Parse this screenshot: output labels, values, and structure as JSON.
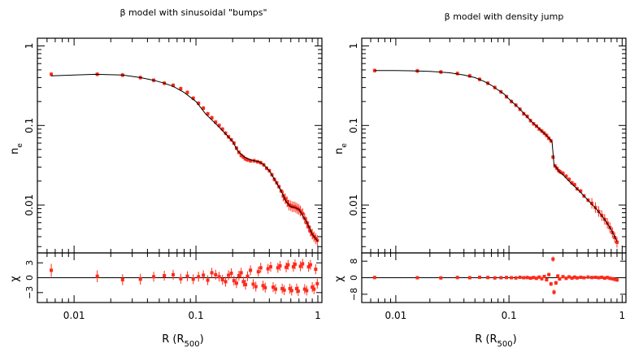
{
  "chart_data": [
    {
      "type": "line",
      "title": "β model with sinusoidal \"bumps\"",
      "xlabel": "R (R",
      "xlabel_sub": "500",
      "xlabel_close": ")",
      "ylabel": "n",
      "ylabel_sub": "e",
      "xscale": "log",
      "yscale": "log",
      "xlim": [
        0.005,
        1.08
      ],
      "ylim": [
        0.0025,
        1.25
      ],
      "xticks": [
        {
          "v": 0.01,
          "label": "0.01"
        },
        {
          "v": 0.1,
          "label": "0.1"
        },
        {
          "v": 1,
          "label": "1"
        }
      ],
      "yticks": [
        {
          "v": 0.01,
          "label": "0.01"
        },
        {
          "v": 0.1,
          "label": "0.1"
        },
        {
          "v": 1,
          "label": "1"
        }
      ],
      "model_color": "#000000",
      "data_color": "#ff2a1a",
      "model_points": [
        [
          0.0065,
          0.42
        ],
        [
          0.01,
          0.43
        ],
        [
          0.015,
          0.44
        ],
        [
          0.025,
          0.43
        ],
        [
          0.035,
          0.4
        ],
        [
          0.045,
          0.37
        ],
        [
          0.055,
          0.34
        ],
        [
          0.065,
          0.31
        ],
        [
          0.08,
          0.26
        ],
        [
          0.1,
          0.2
        ],
        [
          0.12,
          0.14
        ],
        [
          0.15,
          0.1
        ],
        [
          0.18,
          0.075
        ],
        [
          0.2,
          0.063
        ],
        [
          0.22,
          0.048
        ],
        [
          0.25,
          0.04
        ],
        [
          0.28,
          0.037
        ],
        [
          0.3,
          0.036
        ],
        [
          0.33,
          0.035
        ],
        [
          0.36,
          0.032
        ],
        [
          0.4,
          0.027
        ],
        [
          0.45,
          0.02
        ],
        [
          0.5,
          0.015
        ],
        [
          0.55,
          0.011
        ],
        [
          0.6,
          0.0095
        ],
        [
          0.65,
          0.0093
        ],
        [
          0.7,
          0.0088
        ],
        [
          0.8,
          0.0063
        ],
        [
          0.9,
          0.0043
        ],
        [
          1.0,
          0.0035
        ]
      ],
      "data_points": [
        [
          0.0065,
          0.44
        ],
        [
          0.0155,
          0.44
        ],
        [
          0.025,
          0.43
        ],
        [
          0.035,
          0.4
        ],
        [
          0.045,
          0.37
        ],
        [
          0.055,
          0.34
        ],
        [
          0.065,
          0.32
        ],
        [
          0.075,
          0.29
        ],
        [
          0.085,
          0.26
        ],
        [
          0.095,
          0.22
        ],
        [
          0.105,
          0.19
        ],
        [
          0.115,
          0.165
        ],
        [
          0.125,
          0.14
        ],
        [
          0.135,
          0.125
        ],
        [
          0.145,
          0.11
        ],
        [
          0.155,
          0.1
        ],
        [
          0.165,
          0.09
        ],
        [
          0.175,
          0.08
        ],
        [
          0.185,
          0.072
        ],
        [
          0.195,
          0.066
        ],
        [
          0.205,
          0.06
        ],
        [
          0.215,
          0.052
        ],
        [
          0.225,
          0.046
        ],
        [
          0.235,
          0.042
        ],
        [
          0.245,
          0.04
        ],
        [
          0.255,
          0.038
        ],
        [
          0.265,
          0.037
        ],
        [
          0.28,
          0.036
        ],
        [
          0.3,
          0.036
        ],
        [
          0.32,
          0.035
        ],
        [
          0.34,
          0.034
        ],
        [
          0.36,
          0.032
        ],
        [
          0.38,
          0.029
        ],
        [
          0.4,
          0.027
        ],
        [
          0.42,
          0.024
        ],
        [
          0.44,
          0.021
        ],
        [
          0.46,
          0.019
        ],
        [
          0.48,
          0.017
        ],
        [
          0.5,
          0.015
        ],
        [
          0.52,
          0.013
        ],
        [
          0.54,
          0.012
        ],
        [
          0.56,
          0.011
        ],
        [
          0.58,
          0.01
        ],
        [
          0.6,
          0.0098
        ],
        [
          0.62,
          0.0095
        ],
        [
          0.64,
          0.0095
        ],
        [
          0.66,
          0.0093
        ],
        [
          0.68,
          0.009
        ],
        [
          0.7,
          0.0088
        ],
        [
          0.72,
          0.0084
        ],
        [
          0.75,
          0.0078
        ],
        [
          0.78,
          0.0068
        ],
        [
          0.81,
          0.006
        ],
        [
          0.84,
          0.0053
        ],
        [
          0.87,
          0.0047
        ],
        [
          0.9,
          0.0043
        ],
        [
          0.93,
          0.004
        ],
        [
          0.96,
          0.0038
        ],
        [
          0.99,
          0.0036
        ]
      ],
      "residual": {
        "ylabel": "χ",
        "yticks": [
          {
            "v": 3,
            "label": "3"
          },
          {
            "v": 0,
            "label": "0"
          },
          {
            "v": -3,
            "label": "−3"
          }
        ],
        "ylim": [
          -5,
          5
        ],
        "points": [
          [
            0.0065,
            1.5,
            1.3
          ],
          [
            0.0155,
            0.3,
            1.2
          ],
          [
            0.025,
            -0.4,
            1.1
          ],
          [
            0.035,
            -0.3,
            1.1
          ],
          [
            0.045,
            0.2,
            1.0
          ],
          [
            0.055,
            0.4,
            1.0
          ],
          [
            0.065,
            0.6,
            1.0
          ],
          [
            0.075,
            -0.2,
            1.0
          ],
          [
            0.085,
            0.3,
            1.0
          ],
          [
            0.095,
            -0.3,
            1.0
          ],
          [
            0.105,
            0.2,
            1.0
          ],
          [
            0.115,
            0.5,
            1.0
          ],
          [
            0.125,
            -0.5,
            1.0
          ],
          [
            0.135,
            1.0,
            1.0
          ],
          [
            0.145,
            0.6,
            1.0
          ],
          [
            0.155,
            0.2,
            1.0
          ],
          [
            0.165,
            -0.4,
            1.0
          ],
          [
            0.175,
            -0.8,
            1.0
          ],
          [
            0.185,
            0.5,
            1.0
          ],
          [
            0.195,
            0.9,
            1.0
          ],
          [
            0.205,
            -0.6,
            1.0
          ],
          [
            0.215,
            -1.1,
            1.0
          ],
          [
            0.225,
            0.4,
            1.0
          ],
          [
            0.235,
            1.0,
            1.0
          ],
          [
            0.245,
            -0.8,
            1.0
          ],
          [
            0.255,
            -1.4,
            1.0
          ],
          [
            0.265,
            0.3,
            1.0
          ],
          [
            0.28,
            1.5,
            1.0
          ],
          [
            0.295,
            -1.3,
            1.0
          ],
          [
            0.31,
            -1.8,
            1.0
          ],
          [
            0.325,
            1.2,
            1.0
          ],
          [
            0.34,
            2.0,
            1.0
          ],
          [
            0.355,
            -1.6,
            1.0
          ],
          [
            0.37,
            -2.0,
            1.0
          ],
          [
            0.39,
            1.8,
            1.0
          ],
          [
            0.41,
            2.2,
            1.0
          ],
          [
            0.43,
            -1.9,
            1.0
          ],
          [
            0.45,
            -2.3,
            1.0
          ],
          [
            0.47,
            2.0,
            1.0
          ],
          [
            0.49,
            2.4,
            1.0
          ],
          [
            0.51,
            -2.2,
            1.0
          ],
          [
            0.53,
            -2.5,
            1.0
          ],
          [
            0.55,
            2.1,
            1.0
          ],
          [
            0.57,
            2.6,
            1.0
          ],
          [
            0.59,
            -2.2,
            1.0
          ],
          [
            0.61,
            -2.6,
            1.0
          ],
          [
            0.63,
            2.2,
            1.0
          ],
          [
            0.65,
            2.7,
            1.0
          ],
          [
            0.67,
            -2.2,
            1.0
          ],
          [
            0.69,
            -2.7,
            1.0
          ],
          [
            0.72,
            2.3,
            1.0
          ],
          [
            0.75,
            2.8,
            1.0
          ],
          [
            0.78,
            -2.3,
            1.0
          ],
          [
            0.81,
            -2.6,
            1.0
          ],
          [
            0.84,
            2.2,
            1.0
          ],
          [
            0.87,
            2.6,
            1.0
          ],
          [
            0.9,
            -1.9,
            1.0
          ],
          [
            0.93,
            -2.3,
            1.0
          ],
          [
            0.96,
            1.7,
            1.0
          ],
          [
            0.99,
            -1.2,
            1.0
          ]
        ]
      }
    },
    {
      "type": "line",
      "title": "β model with density jump",
      "xlabel": "R (R",
      "xlabel_sub": "500",
      "xlabel_close": ")",
      "ylabel": "n",
      "ylabel_sub": "e",
      "xscale": "log",
      "yscale": "log",
      "xlim": [
        0.005,
        1.08
      ],
      "ylim": [
        0.0025,
        1.25
      ],
      "xticks": [
        {
          "v": 0.01,
          "label": "0.01"
        },
        {
          "v": 0.1,
          "label": "0.1"
        },
        {
          "v": 1,
          "label": "1"
        }
      ],
      "yticks": [
        {
          "v": 0.01,
          "label": "0.01"
        },
        {
          "v": 0.1,
          "label": "0.1"
        },
        {
          "v": 1,
          "label": "1"
        }
      ],
      "model_color": "#000000",
      "data_color": "#ff2a1a",
      "model_points": [
        [
          0.0065,
          0.49
        ],
        [
          0.01,
          0.49
        ],
        [
          0.015,
          0.485
        ],
        [
          0.02,
          0.48
        ],
        [
          0.03,
          0.46
        ],
        [
          0.04,
          0.43
        ],
        [
          0.05,
          0.4
        ],
        [
          0.06,
          0.36
        ],
        [
          0.07,
          0.32
        ],
        [
          0.08,
          0.28
        ],
        [
          0.09,
          0.25
        ],
        [
          0.1,
          0.215
        ],
        [
          0.12,
          0.17
        ],
        [
          0.14,
          0.135
        ],
        [
          0.16,
          0.11
        ],
        [
          0.18,
          0.095
        ],
        [
          0.2,
          0.082
        ],
        [
          0.22,
          0.072
        ],
        [
          0.235,
          0.065
        ],
        [
          0.24,
          0.062
        ],
        [
          0.245,
          0.045
        ],
        [
          0.25,
          0.032
        ],
        [
          0.26,
          0.03
        ],
        [
          0.28,
          0.026
        ],
        [
          0.3,
          0.024
        ],
        [
          0.35,
          0.019
        ],
        [
          0.4,
          0.016
        ],
        [
          0.5,
          0.0115
        ],
        [
          0.6,
          0.0087
        ],
        [
          0.7,
          0.0066
        ],
        [
          0.8,
          0.0049
        ],
        [
          0.9,
          0.0035
        ]
      ],
      "data_points": [
        [
          0.0065,
          0.49
        ],
        [
          0.0155,
          0.485
        ],
        [
          0.025,
          0.47
        ],
        [
          0.035,
          0.45
        ],
        [
          0.045,
          0.42
        ],
        [
          0.055,
          0.38
        ],
        [
          0.065,
          0.34
        ],
        [
          0.075,
          0.3
        ],
        [
          0.085,
          0.265
        ],
        [
          0.095,
          0.23
        ],
        [
          0.105,
          0.2
        ],
        [
          0.115,
          0.18
        ],
        [
          0.125,
          0.16
        ],
        [
          0.135,
          0.14
        ],
        [
          0.145,
          0.13
        ],
        [
          0.155,
          0.115
        ],
        [
          0.165,
          0.105
        ],
        [
          0.175,
          0.098
        ],
        [
          0.185,
          0.09
        ],
        [
          0.195,
          0.085
        ],
        [
          0.205,
          0.08
        ],
        [
          0.215,
          0.075
        ],
        [
          0.225,
          0.069
        ],
        [
          0.235,
          0.064
        ],
        [
          0.245,
          0.04
        ],
        [
          0.255,
          0.031
        ],
        [
          0.265,
          0.029
        ],
        [
          0.275,
          0.027
        ],
        [
          0.285,
          0.026
        ],
        [
          0.3,
          0.025
        ],
        [
          0.32,
          0.023
        ],
        [
          0.34,
          0.021
        ],
        [
          0.36,
          0.019
        ],
        [
          0.38,
          0.018
        ],
        [
          0.4,
          0.016
        ],
        [
          0.43,
          0.015
        ],
        [
          0.46,
          0.013
        ],
        [
          0.5,
          0.0115
        ],
        [
          0.54,
          0.0105
        ],
        [
          0.58,
          0.0093
        ],
        [
          0.62,
          0.0083
        ],
        [
          0.66,
          0.0074
        ],
        [
          0.7,
          0.0066
        ],
        [
          0.74,
          0.0059
        ],
        [
          0.78,
          0.0052
        ],
        [
          0.82,
          0.0045
        ],
        [
          0.86,
          0.0039
        ],
        [
          0.9,
          0.0034
        ]
      ],
      "residual": {
        "ylabel": "χ",
        "yticks": [
          {
            "v": 8,
            "label": "8"
          },
          {
            "v": 0,
            "label": "0"
          },
          {
            "v": -8,
            "label": "−8"
          }
        ],
        "ylim": [
          -12,
          12
        ],
        "points": [
          [
            0.0065,
            0.1,
            0.8
          ],
          [
            0.0155,
            0.0,
            0.8
          ],
          [
            0.025,
            -0.1,
            0.8
          ],
          [
            0.035,
            0.1,
            0.8
          ],
          [
            0.045,
            0.0,
            0.8
          ],
          [
            0.055,
            0.2,
            0.8
          ],
          [
            0.065,
            0.1,
            0.8
          ],
          [
            0.075,
            -0.1,
            0.8
          ],
          [
            0.085,
            0.0,
            0.8
          ],
          [
            0.095,
            0.1,
            0.8
          ],
          [
            0.105,
            0.0,
            0.8
          ],
          [
            0.115,
            -0.1,
            0.8
          ],
          [
            0.125,
            0.2,
            0.8
          ],
          [
            0.135,
            0.0,
            0.8
          ],
          [
            0.145,
            0.1,
            0.8
          ],
          [
            0.155,
            -0.2,
            0.8
          ],
          [
            0.165,
            0.1,
            0.8
          ],
          [
            0.175,
            -0.3,
            0.8
          ],
          [
            0.185,
            0.3,
            0.8
          ],
          [
            0.195,
            -0.5,
            0.8
          ],
          [
            0.205,
            0.6,
            0.8
          ],
          [
            0.215,
            -1.0,
            0.8
          ],
          [
            0.225,
            1.5,
            0.9
          ],
          [
            0.235,
            -3.0,
            1.0
          ],
          [
            0.245,
            9.0,
            1.2
          ],
          [
            0.25,
            -7.0,
            1.2
          ],
          [
            0.26,
            -2.5,
            1.0
          ],
          [
            0.27,
            0.8,
            0.9
          ],
          [
            0.28,
            -0.6,
            0.8
          ],
          [
            0.3,
            0.5,
            0.8
          ],
          [
            0.32,
            -0.3,
            0.8
          ],
          [
            0.34,
            0.4,
            0.8
          ],
          [
            0.36,
            -0.2,
            0.8
          ],
          [
            0.38,
            0.3,
            0.8
          ],
          [
            0.4,
            -0.1,
            0.8
          ],
          [
            0.43,
            0.2,
            0.8
          ],
          [
            0.46,
            0.0,
            0.8
          ],
          [
            0.5,
            0.3,
            0.8
          ],
          [
            0.54,
            0.1,
            0.8
          ],
          [
            0.58,
            0.2,
            0.8
          ],
          [
            0.62,
            0.0,
            0.8
          ],
          [
            0.66,
            0.2,
            0.8
          ],
          [
            0.7,
            -0.2,
            0.8
          ],
          [
            0.74,
            0.1,
            0.8
          ],
          [
            0.78,
            -0.3,
            0.8
          ],
          [
            0.82,
            -0.5,
            0.8
          ],
          [
            0.86,
            -0.8,
            0.8
          ],
          [
            0.9,
            -1.1,
            0.8
          ]
        ]
      }
    }
  ]
}
